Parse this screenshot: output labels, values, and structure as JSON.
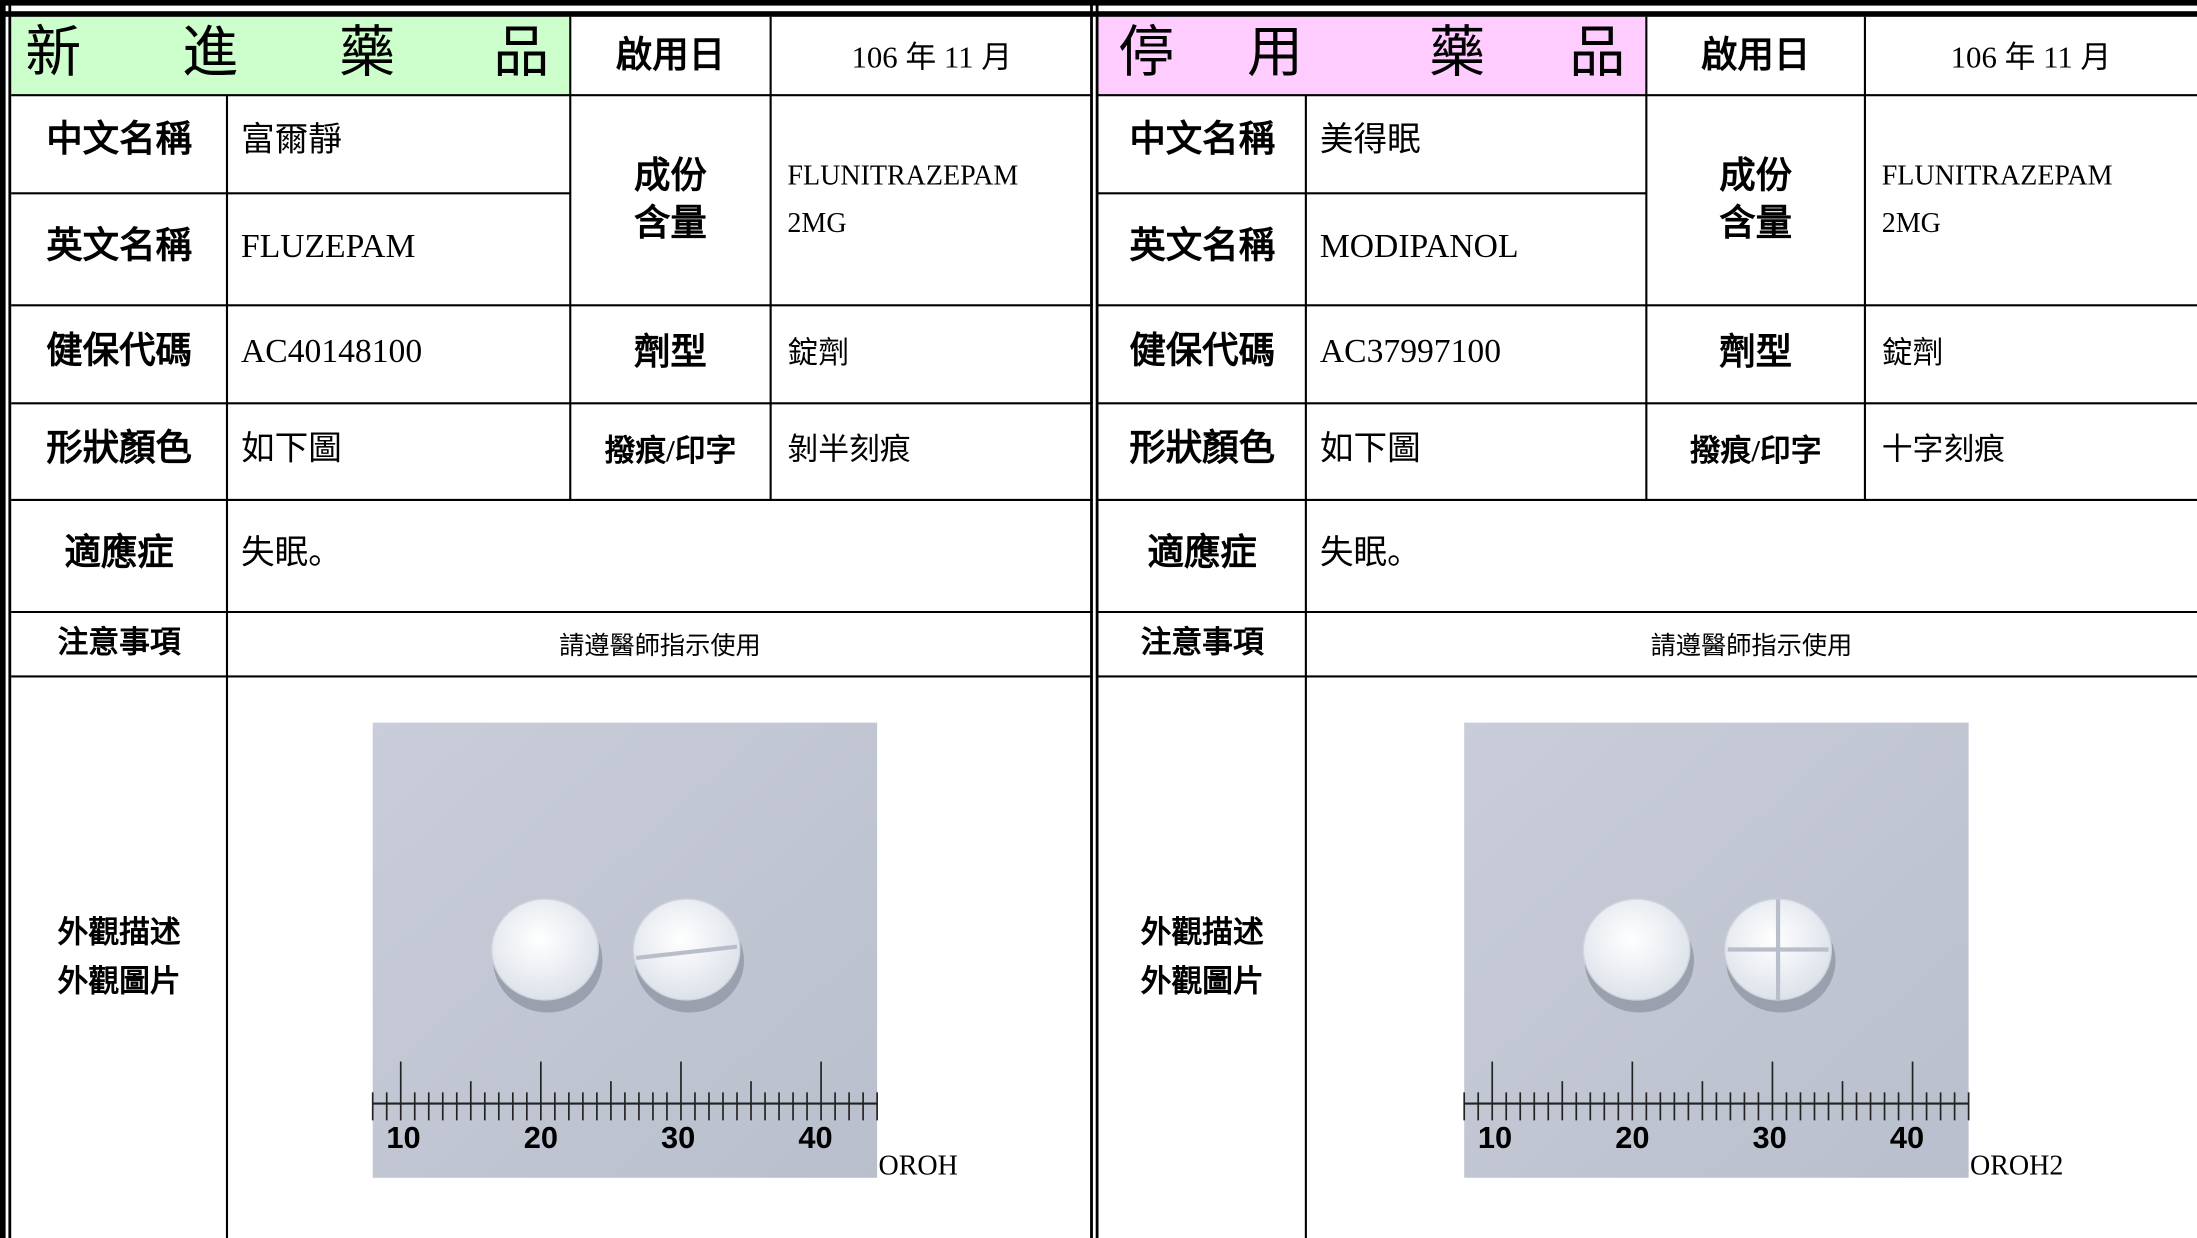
{
  "panels": [
    {
      "title": [
        "新",
        "進",
        "藥",
        "品"
      ],
      "start_label": "啟用日",
      "start_date": "106 年 11 月",
      "chinese_name": {
        "label": "中文名稱",
        "value": "富爾靜"
      },
      "english_name": {
        "label": "英文名稱",
        "value": "FLUZEPAM"
      },
      "ingredient": {
        "label": [
          "成份",
          "含量"
        ],
        "value": [
          "FLUNITRAZEPAM",
          "2MG"
        ]
      },
      "nhi_code": {
        "label": "健保代碼",
        "value": "AC40148100"
      },
      "dosage_form": {
        "label": "劑型",
        "value": "錠劑"
      },
      "shape_color": {
        "label": "形狀顏色",
        "value": "如下圖"
      },
      "marking": {
        "label": "撥痕/印字",
        "value": "剝半刻痕"
      },
      "indication": {
        "label": "適應症",
        "value": "失眠。"
      },
      "precautions": {
        "label": "注意事項",
        "value": "請遵醫師指示使用"
      },
      "appearance": {
        "label": [
          "外觀描述",
          "外觀圖片"
        ],
        "ruler": [
          "10",
          "20",
          "30",
          "40"
        ],
        "photo_code": "OROH"
      }
    },
    {
      "title": [
        "停",
        "用",
        "藥",
        "品"
      ],
      "start_label": "啟用日",
      "start_date": "106 年 11 月",
      "chinese_name": {
        "label": "中文名稱",
        "value": "美得眠"
      },
      "english_name": {
        "label": "英文名稱",
        "value": "MODIPANOL"
      },
      "ingredient": {
        "label": [
          "成份",
          "含量"
        ],
        "value": [
          "FLUNITRAZEPAM",
          "2MG"
        ]
      },
      "nhi_code": {
        "label": "健保代碼",
        "value": "AC37997100"
      },
      "dosage_form": {
        "label": "劑型",
        "value": "錠劑"
      },
      "shape_color": {
        "label": "形狀顏色",
        "value": "如下圖"
      },
      "marking": {
        "label": "撥痕/印字",
        "value": "十字刻痕"
      },
      "indication": {
        "label": "適應症",
        "value": "失眠。"
      },
      "precautions": {
        "label": "注意事項",
        "value": "請遵醫師指示使用"
      },
      "appearance": {
        "label": [
          "外觀描述",
          "外觀圖片"
        ],
        "ruler": [
          "10",
          "20",
          "30",
          "40"
        ],
        "photo_code": "OROH2"
      }
    }
  ]
}
